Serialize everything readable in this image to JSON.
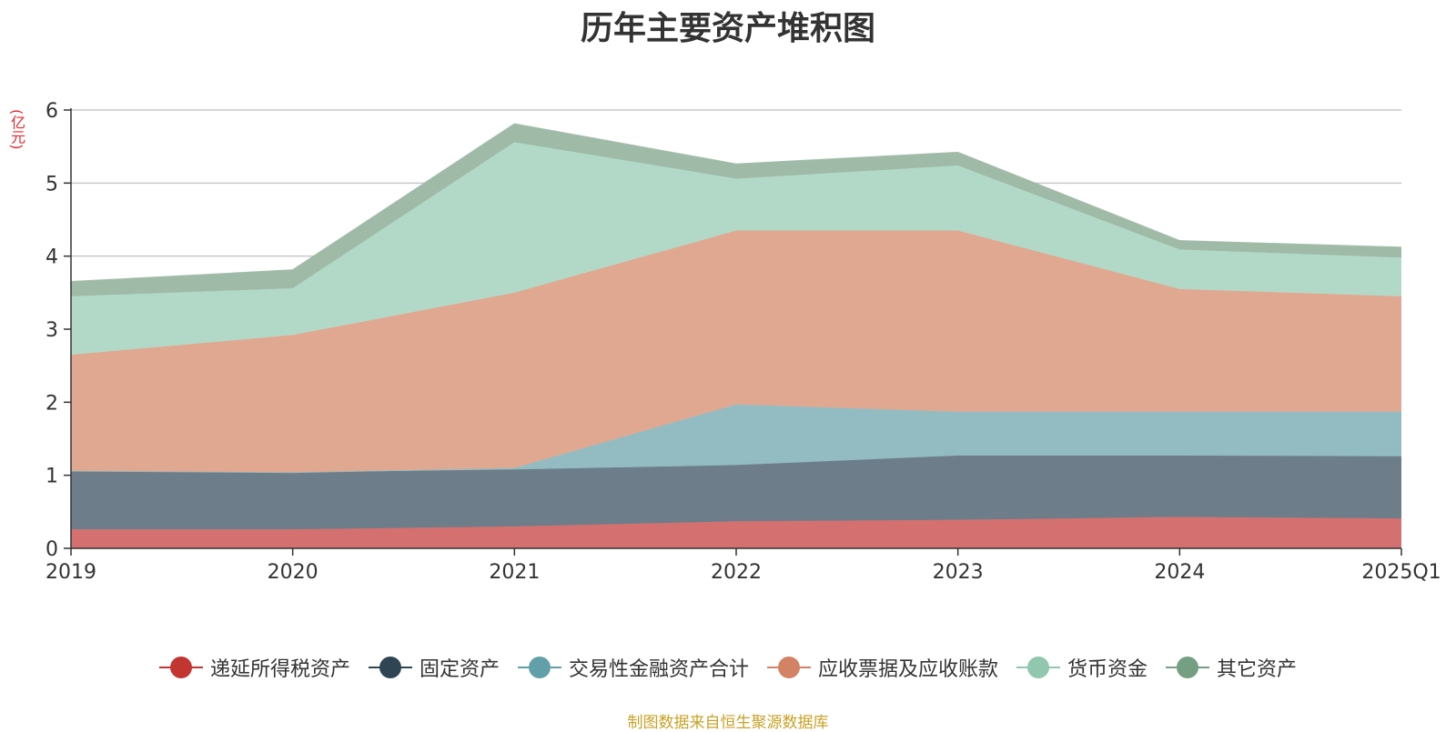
{
  "chart_data": {
    "type": "area",
    "title": "历年主要资产堆积图",
    "unit_label": "(亿元)",
    "categories": [
      "2019",
      "2020",
      "2021",
      "2022",
      "2023",
      "2024",
      "2025Q1"
    ],
    "ylim": [
      0,
      6
    ],
    "yticks": [
      "0",
      "1",
      "2",
      "3",
      "4",
      "5",
      "6"
    ],
    "stacked": true,
    "grid": true,
    "legend_position": "bottom",
    "series": [
      {
        "name": "递延所得税资产",
        "color": "#c23531",
        "fill": "#d4706f",
        "values": [
          0.26,
          0.26,
          0.3,
          0.37,
          0.39,
          0.43,
          0.41
        ]
      },
      {
        "name": "固定资产",
        "color": "#2f4554",
        "fill": "#6d7d89",
        "values": [
          0.8,
          0.78,
          0.78,
          0.77,
          0.88,
          0.84,
          0.85
        ]
      },
      {
        "name": "交易性金融资产合计",
        "color": "#61a0a8",
        "fill": "#93bcc2",
        "values": [
          0.0,
          0.0,
          0.02,
          0.83,
          0.6,
          0.6,
          0.61
        ]
      },
      {
        "name": "应收票据及应收账款",
        "color": "#d48265",
        "fill": "#e0a891",
        "values": [
          1.59,
          1.88,
          2.4,
          2.38,
          2.48,
          1.68,
          1.58
        ]
      },
      {
        "name": "货币资金",
        "color": "#91c7ae",
        "fill": "#b2d9c8",
        "values": [
          0.8,
          0.64,
          2.06,
          0.71,
          0.89,
          0.54,
          0.53
        ]
      },
      {
        "name": "其它资产",
        "color": "#749f83",
        "fill": "#9fbaa7",
        "values": [
          0.2,
          0.25,
          0.25,
          0.2,
          0.18,
          0.12,
          0.14
        ]
      }
    ]
  },
  "source_note": "制图数据来自恒生聚源数据库"
}
